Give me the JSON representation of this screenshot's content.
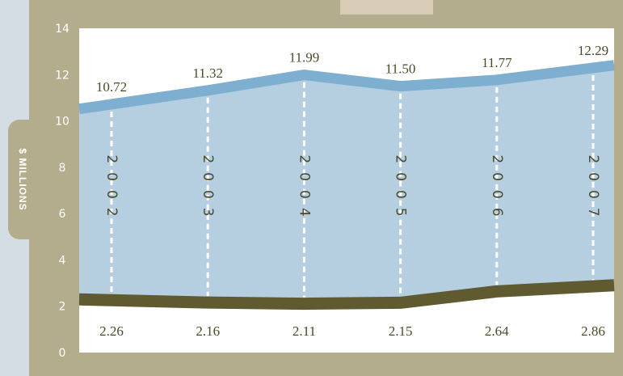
{
  "chart_data": {
    "type": "area",
    "ylabel": "$ MILLIONS",
    "ylim": [
      0,
      14
    ],
    "yticks": [
      0,
      2,
      4,
      6,
      8,
      10,
      12,
      14
    ],
    "years": [
      "2002",
      "2003",
      "2004",
      "2005",
      "2006",
      "2007"
    ],
    "series": [
      {
        "values": [
          10.72,
          11.32,
          11.99,
          11.5,
          11.77,
          12.29
        ],
        "labels": [
          "10.72",
          "11.32",
          "11.99",
          "11.50",
          "11.77",
          "12.29"
        ],
        "color": "#7eaed0"
      },
      {
        "values": [
          2.26,
          2.16,
          2.11,
          2.15,
          2.64,
          2.86
        ],
        "labels": [
          "2.26",
          "2.16",
          "2.11",
          "2.15",
          "2.64",
          "2.86"
        ],
        "color": "#5f5a2f"
      }
    ]
  },
  "colors": {
    "frame": "#b3ad8e",
    "area_fill": "#b5cfe1",
    "plot_bg": "#ffffff",
    "text": "#4b4a2a"
  }
}
